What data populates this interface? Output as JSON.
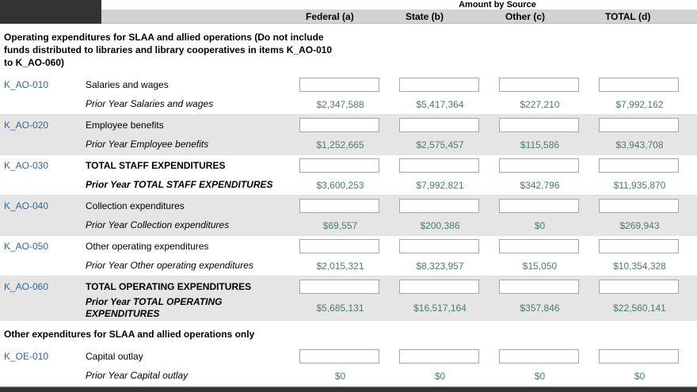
{
  "header": {
    "amount_by_source": "Amount by Source",
    "columns": [
      "Federal (a)",
      "State (b)",
      "Other (c)",
      "TOTAL (d)"
    ]
  },
  "sections": [
    {
      "title": "Operating expenditures for SLAA and allied operations (Do not include funds distributed to libraries and library cooperatives in items K_AO-010 to K_AO-060)",
      "rows": [
        {
          "code": "K_AO-010",
          "label": "Salaries and wages",
          "prior_label": "Prior Year Salaries and wages",
          "bold": false,
          "shaded": false,
          "input_values": [
            "",
            "",
            "",
            ""
          ],
          "prior_values": [
            "$2,347,588",
            "$5,417,364",
            "$227,210",
            "$7,992,162"
          ]
        },
        {
          "code": "K_AO-020",
          "label": "Employee benefits",
          "prior_label": "Prior Year Employee benefits",
          "bold": false,
          "shaded": true,
          "input_values": [
            "",
            "",
            "",
            ""
          ],
          "prior_values": [
            "$1,252,665",
            "$2,575,457",
            "$115,586",
            "$3,943,708"
          ]
        },
        {
          "code": "K_AO-030",
          "label": "TOTAL STAFF EXPENDITURES",
          "prior_label": "Prior Year TOTAL STAFF EXPENDITURES",
          "bold": true,
          "shaded": false,
          "input_values": [
            "",
            "",
            "",
            ""
          ],
          "prior_values": [
            "$3,600,253",
            "$7,992,821",
            "$342,796",
            "$11,935,870"
          ]
        },
        {
          "code": "K_AO-040",
          "label": "Collection expenditures",
          "prior_label": "Prior Year Collection expenditures",
          "bold": false,
          "shaded": true,
          "input_values": [
            "",
            "",
            "",
            ""
          ],
          "prior_values": [
            "$69,557",
            "$200,386",
            "$0",
            "$269,943"
          ]
        },
        {
          "code": "K_AO-050",
          "label": "Other operating expenditures",
          "prior_label": "Prior Year Other operating expenditures",
          "bold": false,
          "shaded": false,
          "input_values": [
            "",
            "",
            "",
            ""
          ],
          "prior_values": [
            "$2,015,321",
            "$8,323,957",
            "$15,050",
            "$10,354,328"
          ]
        },
        {
          "code": "K_AO-060",
          "label": "TOTAL OPERATING EXPENDITURES",
          "prior_label": "Prior Year TOTAL OPERATING EXPENDITURES",
          "bold": true,
          "shaded": true,
          "input_values": [
            "",
            "",
            "",
            ""
          ],
          "prior_values": [
            "$5,685,131",
            "$16,517,164",
            "$357,846",
            "$22,560,141"
          ]
        }
      ]
    },
    {
      "title": "Other expenditures for SLAA and allied operations only",
      "rows": [
        {
          "code": "K_OE-010",
          "label": "Capital outlay",
          "prior_label": "Prior Year Capital outlay",
          "bold": false,
          "shaded": false,
          "input_values": [
            "",
            "",
            "",
            ""
          ],
          "prior_values": [
            "$0",
            "$0",
            "$0",
            "$0"
          ]
        }
      ]
    }
  ],
  "colors": {
    "link": "#336699",
    "prior_value": "#4a7c6f",
    "shaded_row": "#e5e5e5",
    "header_band": "#d2d2d2",
    "dark_cell": "#333333"
  }
}
